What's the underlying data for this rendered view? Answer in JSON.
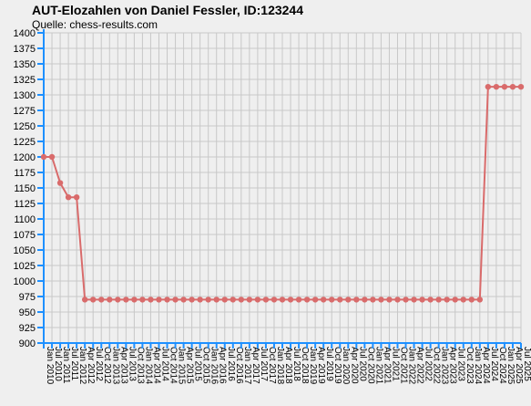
{
  "chart_data": {
    "type": "line",
    "title": "AUT-Elozahlen von Daniel Fessler, ID:123244",
    "subtitle": "Quelle: chess-results.com",
    "xlabel": "",
    "ylabel": "",
    "ylim": [
      900,
      1400
    ],
    "yticks": [
      900,
      925,
      950,
      975,
      1000,
      1025,
      1050,
      1075,
      1100,
      1125,
      1150,
      1175,
      1200,
      1225,
      1250,
      1275,
      1300,
      1325,
      1350,
      1375,
      1400
    ],
    "grid": true,
    "categories": [
      "Jan 2010",
      "Jul 2010",
      "Jan 2011",
      "Jul 2011",
      "Jan 2012",
      "Apr 2012",
      "Jul 2012",
      "Oct 2012",
      "Jan 2013",
      "Apr 2013",
      "Jul 2013",
      "Oct 2013",
      "Jan 2014",
      "Apr 2014",
      "Jul 2014",
      "Oct 2014",
      "Jan 2015",
      "Apr 2015",
      "Jul 2015",
      "Oct 2015",
      "Jan 2016",
      "Apr 2016",
      "Jul 2016",
      "Oct 2016",
      "Jan 2017",
      "Apr 2017",
      "Jul 2017",
      "Oct 2017",
      "Jan 2018",
      "Apr 2018",
      "Jul 2018",
      "Oct 2018",
      "Jan 2019",
      "Apr 2019",
      "Jul 2019",
      "Oct 2019",
      "Jan 2020",
      "Apr 2020",
      "Jul 2020",
      "Oct 2020",
      "Jan 2021",
      "Apr 2021",
      "Jul 2021",
      "Oct 2021",
      "Jan 2022",
      "Apr 2022",
      "Jul 2022",
      "Oct 2022",
      "Jan 2023",
      "Apr 2023",
      "Jul 2023",
      "Oct 2023",
      "Jan 2024",
      "Apr 2024",
      "Jul 2024",
      "Oct 2024",
      "Jan 2025",
      "Apr 2025",
      "Jul 2025"
    ],
    "series": [
      {
        "values": [
          1200,
          1200,
          1158,
          1135,
          1135,
          970,
          970,
          970,
          970,
          970,
          970,
          970,
          970,
          970,
          970,
          970,
          970,
          970,
          970,
          970,
          970,
          970,
          970,
          970,
          970,
          970,
          970,
          970,
          970,
          970,
          970,
          970,
          970,
          970,
          970,
          970,
          970,
          970,
          970,
          970,
          970,
          970,
          970,
          970,
          970,
          970,
          970,
          970,
          970,
          970,
          970,
          970,
          970,
          970,
          1313,
          1313,
          1313,
          1313,
          1313
        ]
      }
    ],
    "colors": {
      "line": "#d96b6b",
      "grid": "#c8c8c8",
      "axis": "#1e90ff",
      "background": "#efefef"
    }
  }
}
